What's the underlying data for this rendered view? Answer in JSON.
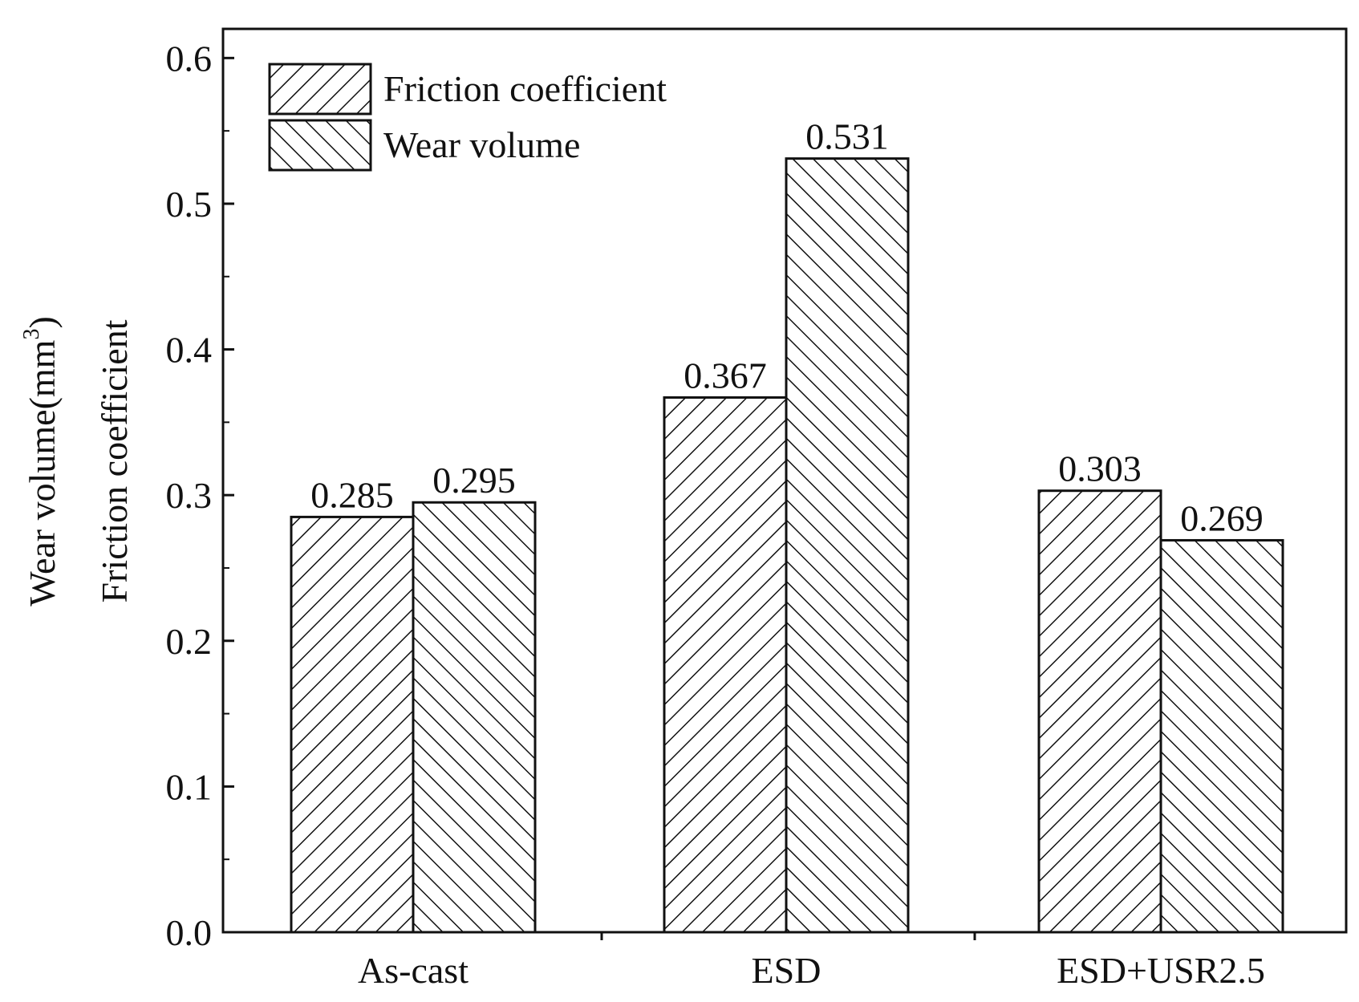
{
  "chart_data": {
    "type": "bar",
    "categories": [
      "As-cast",
      "ESD",
      "ESD+USR2.5"
    ],
    "series": [
      {
        "name": "Friction coefficient",
        "values": [
          0.285,
          0.367,
          0.303
        ],
        "labels": [
          "0.285",
          "0.367",
          "0.303"
        ],
        "pattern": "forward-hatch"
      },
      {
        "name": "Wear volume",
        "values": [
          0.295,
          0.531,
          0.269
        ],
        "labels": [
          "0.295",
          "0.531",
          "0.269"
        ],
        "pattern": "back-hatch"
      }
    ],
    "ylabel_outer": "Wear volume(mm",
    "ylabel_outer_sup": "3",
    "ylabel_outer_close": ")",
    "ylabel_inner": "Friction coefficient",
    "xlabel": "",
    "title": "",
    "ylim": [
      0.0,
      0.62
    ],
    "yticks": [
      0.0,
      0.1,
      0.2,
      0.3,
      0.4,
      0.5,
      0.6
    ],
    "ytick_labels": [
      "0.0",
      "0.1",
      "0.2",
      "0.3",
      "0.4",
      "0.5",
      "0.6"
    ],
    "legend_position": "top-left",
    "grid": false,
    "colors": {
      "ink": "#111111",
      "fill": "#ffffff"
    }
  }
}
